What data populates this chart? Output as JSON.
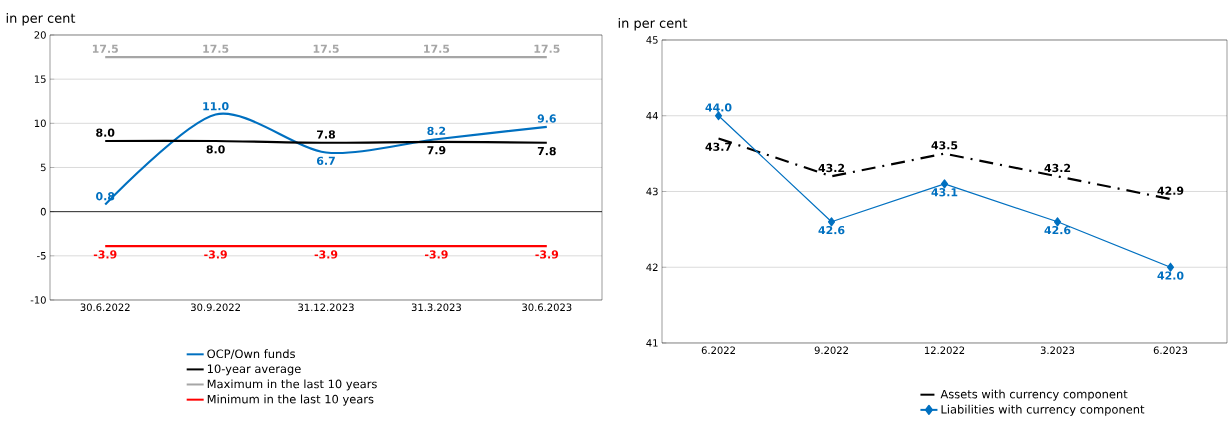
{
  "chart_data": [
    {
      "type": "line",
      "ylabel": "in per cent",
      "categories": [
        "30.6.2022",
        "30.9.2022",
        "31.12.2023",
        "31.3.2023",
        "30.6.2023"
      ],
      "ylim": [
        -10,
        20
      ],
      "yticks": [
        -10,
        -5,
        0,
        5,
        10,
        15,
        20
      ],
      "grid": "y",
      "legend": "bottom",
      "series": [
        {
          "name": "OCP/Own funds",
          "color": "#0070c0",
          "values": [
            0.8,
            11.0,
            6.7,
            8.2,
            9.6
          ],
          "value_labels": [
            "0.8",
            "11.0",
            "6.7",
            "8.2",
            "9.6"
          ]
        },
        {
          "name": "10-year average",
          "color": "#000000",
          "values": [
            8.0,
            8.0,
            7.8,
            7.9,
            7.8
          ],
          "value_labels": [
            "8.0",
            "8.0",
            "7.8",
            "7.9",
            "7.8"
          ]
        },
        {
          "name": "Maximum in the last 10 years",
          "color": "#a6a6a6",
          "values": [
            17.5,
            17.5,
            17.5,
            17.5,
            17.5
          ],
          "value_labels": [
            "17.5",
            "17.5",
            "17.5",
            "17.5",
            "17.5"
          ]
        },
        {
          "name": "Minimum in the last 10 years",
          "color": "#ff0000",
          "values": [
            -3.9,
            -3.9,
            -3.9,
            -3.9,
            -3.9
          ],
          "value_labels": [
            "-3.9",
            "-3.9",
            "-3.9",
            "-3.9",
            "-3.9"
          ]
        }
      ]
    },
    {
      "type": "line",
      "ylabel": "in per cent",
      "categories": [
        "6.2022",
        "9.2022",
        "12.2022",
        "3.2023",
        "6.2023"
      ],
      "ylim": [
        41,
        45
      ],
      "yticks": [
        41,
        42,
        43,
        44,
        45
      ],
      "grid": "y",
      "legend": "bottom",
      "series": [
        {
          "name": "Assets with currency component",
          "color": "#000000",
          "line_style": "dashed",
          "values": [
            43.7,
            43.2,
            43.5,
            43.2,
            42.9
          ],
          "value_labels": [
            "43.7",
            "43.2",
            "43.5",
            "43.2",
            "42.9"
          ]
        },
        {
          "name": "Liabilities with currency component",
          "color": "#0070c0",
          "marker": "diamond",
          "values": [
            44.0,
            42.6,
            43.1,
            42.6,
            42.0
          ],
          "value_labels": [
            "44.0",
            "42.6",
            "43.1",
            "42.6",
            "42.0"
          ]
        }
      ]
    }
  ]
}
